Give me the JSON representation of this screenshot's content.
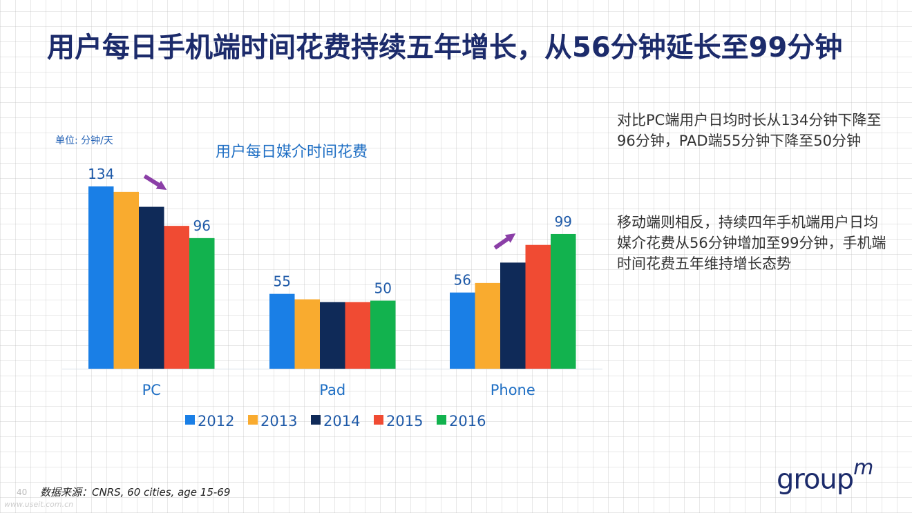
{
  "slide": {
    "title": "用户每日手机端时间花费持续五年增长，从56分钟延长至99分钟",
    "unit_label": "单位: 分钟/天",
    "notes": [
      "对比PC端用户日均时长从134分钟下降至96分钟，PAD端55分钟下降至50分钟",
      "移动端则相反，持续四年手机端用户日均媒介花费从56分钟增加至99分钟，手机端时间花费五年维持增长态势"
    ],
    "source": "数据来源：CNRS, 60 cities, age 15-69",
    "page_number": "40",
    "watermark": "www.useit.com.cn",
    "logo_main": "group",
    "logo_sup": "m"
  },
  "chart_data": {
    "type": "bar",
    "title": "用户每日媒介时间花费",
    "categories": [
      "PC",
      "Pad",
      "Phone"
    ],
    "series": [
      {
        "name": "2012",
        "color": "#1a7fe6",
        "values": [
          134,
          55,
          56
        ]
      },
      {
        "name": "2013",
        "color": "#f9ab2f",
        "values": [
          130,
          51,
          63
        ]
      },
      {
        "name": "2014",
        "color": "#0f2a58",
        "values": [
          119,
          49,
          78
        ]
      },
      {
        "name": "2015",
        "color": "#f04b33",
        "values": [
          105,
          49,
          91
        ]
      },
      {
        "name": "2016",
        "color": "#12b24e",
        "values": [
          96,
          50,
          99
        ]
      }
    ],
    "data_labels": [
      {
        "category": "PC",
        "series": "2012",
        "text": "134"
      },
      {
        "category": "PC",
        "series": "2016",
        "text": "96"
      },
      {
        "category": "Pad",
        "series": "2012",
        "text": "55"
      },
      {
        "category": "Pad",
        "series": "2016",
        "text": "50"
      },
      {
        "category": "Phone",
        "series": "2012",
        "text": "56"
      },
      {
        "category": "Phone",
        "series": "2016",
        "text": "99"
      }
    ],
    "arrows": [
      {
        "category": "PC",
        "direction": "down",
        "color": "#8b3fa7"
      },
      {
        "category": "Phone",
        "direction": "up",
        "color": "#8b3fa7"
      }
    ],
    "ylim": [
      0,
      140
    ],
    "grid": false,
    "legend": "bottom"
  }
}
